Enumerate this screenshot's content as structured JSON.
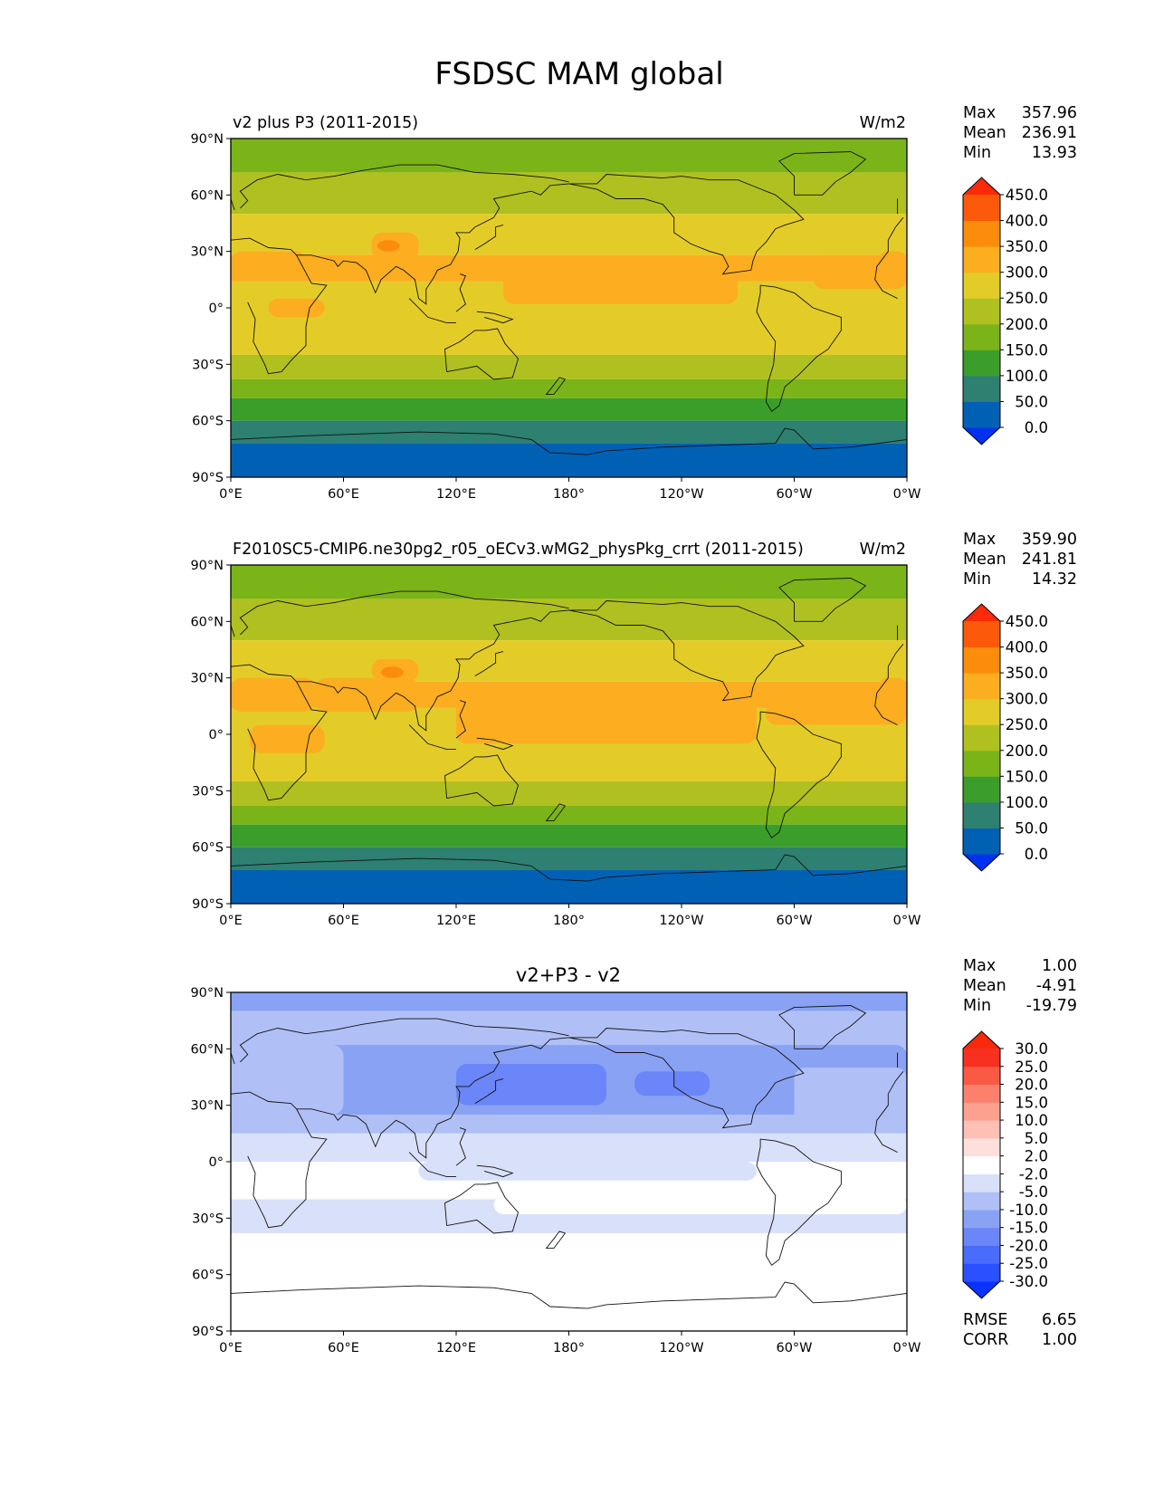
{
  "title": "FSDSC MAM global",
  "lat_ticks": [
    "90°N",
    "60°N",
    "30°N",
    "0°",
    "30°S",
    "60°S",
    "90°S"
  ],
  "lon_ticks": [
    "0°E",
    "60°E",
    "120°E",
    "180°",
    "120°W",
    "60°W",
    "0°W"
  ],
  "chart_data": [
    {
      "type": "heatmap",
      "name": "test",
      "title_left": "v2 plus P3 (2011-2015)",
      "title_right": "W/m2",
      "variable": "FSDSC",
      "season": "MAM",
      "stats": [
        {
          "label": "Max",
          "value": "357.96"
        },
        {
          "label": "Mean",
          "value": "236.91"
        },
        {
          "label": "Min",
          "value": "13.93"
        }
      ],
      "colorbar": {
        "levels": [
          "0.0",
          "50.0",
          "100.0",
          "150.0",
          "200.0",
          "250.0",
          "300.0",
          "350.0",
          "400.0",
          "450.0"
        ],
        "colors": [
          "#0030f0",
          "#0060b4",
          "#2e8070",
          "#3c9e2a",
          "#7ab418",
          "#b0c020",
          "#e4cc28",
          "#fcae20",
          "#fc8c0c",
          "#fc5a0a",
          "#fc2a0a"
        ]
      },
      "zonal_bands": [
        {
          "lat": [
            72,
            90
          ],
          "value": 170
        },
        {
          "lat": [
            50,
            72
          ],
          "value": 210
        },
        {
          "lat": [
            28,
            50
          ],
          "value": 270
        },
        {
          "lat": [
            14,
            28
          ],
          "value": 300
        },
        {
          "lat": [
            -25,
            14
          ],
          "value": 280
        },
        {
          "lat": [
            -38,
            -25
          ],
          "value": 225
        },
        {
          "lat": [
            -48,
            -38
          ],
          "value": 175
        },
        {
          "lat": [
            -60,
            -48
          ],
          "value": 135
        },
        {
          "lat": [
            -72,
            -60
          ],
          "value": 90
        },
        {
          "lat": [
            -90,
            -72
          ],
          "value": 30
        }
      ],
      "patches": [
        {
          "lon": [
            -15,
            40
          ],
          "lat": [
            15,
            30
          ],
          "value": 310
        },
        {
          "lon": [
            40,
            90
          ],
          "lat": [
            15,
            28
          ],
          "value": 305
        },
        {
          "lon": [
            75,
            100
          ],
          "lat": [
            25,
            40
          ],
          "value": 305
        },
        {
          "lon": [
            78,
            90
          ],
          "lat": [
            30,
            36
          ],
          "value": 355
        },
        {
          "lon": [
            145,
            270
          ],
          "lat": [
            2,
            25
          ],
          "value": 305
        },
        {
          "lon": [
            310,
            360
          ],
          "lat": [
            10,
            28
          ],
          "value": 305
        },
        {
          "lon": [
            20,
            50
          ],
          "lat": [
            -5,
            5
          ],
          "value": 305
        }
      ]
    },
    {
      "type": "heatmap",
      "name": "reference",
      "title_left": "F2010SC5-CMIP6.ne30pg2_r05_oECv3.wMG2_physPkg_crrt (2011-2015)",
      "title_right": "W/m2",
      "variable": "FSDSC",
      "season": "MAM",
      "stats": [
        {
          "label": "Max",
          "value": "359.90"
        },
        {
          "label": "Mean",
          "value": "241.81"
        },
        {
          "label": "Min",
          "value": "14.32"
        }
      ],
      "colorbar": {
        "levels": [
          "0.0",
          "50.0",
          "100.0",
          "150.0",
          "200.0",
          "250.0",
          "300.0",
          "350.0",
          "400.0",
          "450.0"
        ],
        "colors": [
          "#0030f0",
          "#0060b4",
          "#2e8070",
          "#3c9e2a",
          "#7ab418",
          "#b0c020",
          "#e4cc28",
          "#fcae20",
          "#fc8c0c",
          "#fc5a0a",
          "#fc2a0a"
        ]
      },
      "zonal_bands": [
        {
          "lat": [
            72,
            90
          ],
          "value": 170
        },
        {
          "lat": [
            50,
            72
          ],
          "value": 215
        },
        {
          "lat": [
            28,
            50
          ],
          "value": 275
        },
        {
          "lat": [
            14,
            28
          ],
          "value": 310
        },
        {
          "lat": [
            -25,
            14
          ],
          "value": 285
        },
        {
          "lat": [
            -38,
            -25
          ],
          "value": 225
        },
        {
          "lat": [
            -48,
            -38
          ],
          "value": 175
        },
        {
          "lat": [
            -60,
            -48
          ],
          "value": 135
        },
        {
          "lat": [
            -72,
            -60
          ],
          "value": 90
        },
        {
          "lat": [
            -90,
            -72
          ],
          "value": 30
        }
      ],
      "patches": [
        {
          "lon": [
            -15,
            45
          ],
          "lat": [
            12,
            30
          ],
          "value": 310
        },
        {
          "lon": [
            45,
            100
          ],
          "lat": [
            12,
            30
          ],
          "value": 310
        },
        {
          "lon": [
            75,
            100
          ],
          "lat": [
            28,
            40
          ],
          "value": 310
        },
        {
          "lon": [
            80,
            92
          ],
          "lat": [
            30,
            36
          ],
          "value": 355
        },
        {
          "lon": [
            120,
            280
          ],
          "lat": [
            -5,
            25
          ],
          "value": 305
        },
        {
          "lon": [
            285,
            360
          ],
          "lat": [
            5,
            25
          ],
          "value": 305
        },
        {
          "lon": [
            10,
            50
          ],
          "lat": [
            -10,
            5
          ],
          "value": 305
        }
      ]
    },
    {
      "type": "heatmap",
      "name": "difference",
      "title_center": "v2+P3 - v2",
      "variable": "FSDSC",
      "season": "MAM",
      "stats": [
        {
          "label": "Max",
          "value": "1.00"
        },
        {
          "label": "Mean",
          "value": "-4.91"
        },
        {
          "label": "Min",
          "value": "-19.79"
        }
      ],
      "colorbar": {
        "levels": [
          "-30.0",
          "-25.0",
          "-20.0",
          "-15.0",
          "-10.0",
          "-5.0",
          "-2.0",
          "2.0",
          "5.0",
          "10.0",
          "15.0",
          "20.0",
          "25.0",
          "30.0"
        ],
        "colors": [
          "#0a32ff",
          "#2a50ff",
          "#4a6cfc",
          "#6a86f8",
          "#8aa2f4",
          "#b0c0f6",
          "#d8e0fa",
          "#ffffff",
          "#fde0dc",
          "#fcc0b4",
          "#fca090",
          "#fc806c",
          "#fa5a44",
          "#f83020",
          "#f82a0a"
        ]
      },
      "zonal_bands": [
        {
          "lat": [
            80,
            90
          ],
          "value": -12
        },
        {
          "lat": [
            60,
            80
          ],
          "value": -8
        },
        {
          "lat": [
            15,
            60
          ],
          "value": -8
        },
        {
          "lat": [
            0,
            15
          ],
          "value": -4
        },
        {
          "lat": [
            -20,
            0
          ],
          "value": 0
        },
        {
          "lat": [
            -38,
            -20
          ],
          "value": -3
        },
        {
          "lat": [
            -90,
            -38
          ],
          "value": 0
        }
      ],
      "patches": [
        {
          "lon": [
            50,
            360
          ],
          "lat": [
            25,
            62
          ],
          "value": -12
        },
        {
          "lon": [
            120,
            200
          ],
          "lat": [
            30,
            52
          ],
          "value": -17
        },
        {
          "lon": [
            215,
            255
          ],
          "lat": [
            35,
            48
          ],
          "value": -17
        },
        {
          "lon": [
            0,
            60
          ],
          "lat": [
            25,
            62
          ],
          "value": -8
        },
        {
          "lon": [
            300,
            360
          ],
          "lat": [
            20,
            50
          ],
          "value": -8
        },
        {
          "lon": [
            100,
            280
          ],
          "lat": [
            -10,
            0
          ],
          "value": -4
        },
        {
          "lon": [
            140,
            360
          ],
          "lat": [
            -28,
            -18
          ],
          "value": 0
        }
      ]
    }
  ]
}
